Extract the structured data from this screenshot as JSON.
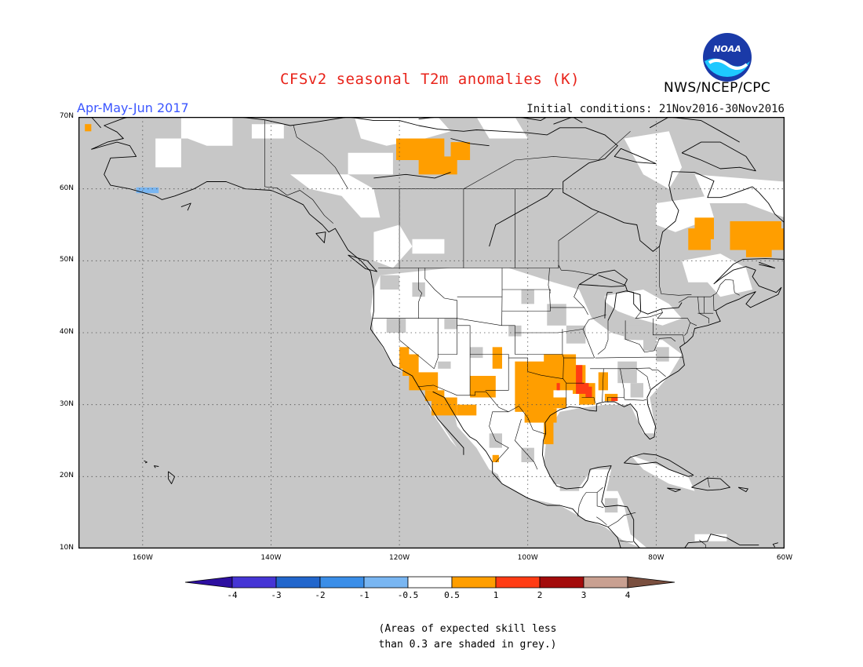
{
  "title": "CFSv2 seasonal T2m anomalies (K)",
  "period": "Apr-May-Jun 2017",
  "initial_conditions": "Initial conditions: 21Nov2016-30Nov2016",
  "agency": "NWS/NCEP/CPC",
  "logo_text": "NOAA",
  "note": [
    "(Areas of expected skill less",
    "than 0.3 are shaded in grey.)"
  ],
  "map": {
    "lon_range": [
      -170,
      -60
    ],
    "lat_range": [
      10,
      70
    ],
    "lat_labels": [
      "70N",
      "60N",
      "50N",
      "40N",
      "30N",
      "20N",
      "10N"
    ],
    "lon_labels": [
      "160W",
      "140W",
      "120W",
      "100W",
      "80W",
      "60W"
    ],
    "grid_lat": [
      20,
      30,
      40,
      50,
      60
    ],
    "grid_lon": [
      -160,
      -140,
      -120,
      -100,
      -80
    ],
    "grey_color": "#c7c7c7"
  },
  "colorbar": {
    "labels": [
      "-4",
      "-3",
      "-2",
      "-1",
      "-0.5",
      "0.5",
      "1",
      "2",
      "3",
      "4"
    ],
    "colors": [
      "#2d0fa0",
      "#4535d5",
      "#2166cc",
      "#3a8ee8",
      "#79b6f2",
      "#ffffff",
      "#ff9e00",
      "#ff3c14",
      "#a30b0b",
      "#c9a091",
      "#7a4f3f"
    ]
  },
  "anomaly_regions": [
    {
      "name": "western-alaska",
      "value": 0.7,
      "cells": [
        [
          -169,
          69,
          -168,
          68
        ]
      ]
    },
    {
      "name": "alaska-south",
      "value": -0.7,
      "cells": [
        [
          -161,
          60.2,
          -157.5,
          59.4
        ]
      ]
    },
    {
      "name": "northwest-territories",
      "value": 0.7,
      "cells": [
        [
          -120.5,
          67,
          -113,
          64
        ],
        [
          -117,
          64.5,
          -111,
          62
        ],
        [
          -112,
          66.5,
          -109,
          64
        ]
      ]
    },
    {
      "name": "quebec-labrador",
      "value": 0.7,
      "cells": [
        [
          -74,
          56,
          -71,
          53
        ],
        [
          -75,
          54.5,
          -71.5,
          51.5
        ],
        [
          -68.5,
          55.5,
          -60.5,
          51.5
        ],
        [
          -66,
          52.5,
          -62,
          50.5
        ],
        [
          -60.5,
          54.5,
          -60,
          51.5
        ]
      ]
    },
    {
      "name": "southwest-us",
      "value": 0.7,
      "cells": [
        [
          -120,
          38,
          -118.5,
          35
        ],
        [
          -119.5,
          37,
          -117,
          34
        ],
        [
          -118.5,
          34.5,
          -114,
          32
        ],
        [
          -116,
          32,
          -113,
          30.5
        ],
        [
          -115,
          31,
          -111,
          28.5
        ],
        [
          -111,
          30,
          -108,
          28.5
        ]
      ]
    },
    {
      "name": "central-us",
      "value": 0.7,
      "cells": [
        [
          -109,
          34,
          -105,
          31
        ],
        [
          -105.5,
          38,
          -104,
          35
        ],
        [
          -102,
          36,
          -96,
          29
        ],
        [
          -97.5,
          37,
          -92.5,
          32
        ],
        [
          -100.5,
          29.5,
          -95.5,
          27.5
        ],
        [
          -97.5,
          28,
          -96,
          24.5
        ],
        [
          -93,
          35.5,
          -91,
          31.5
        ],
        [
          -92,
          33,
          -89.5,
          30
        ],
        [
          -89,
          34.5,
          -87.5,
          32
        ],
        [
          -88,
          31.5,
          -86,
          30.5
        ],
        [
          -105.5,
          23,
          -104.5,
          22
        ],
        [
          -97,
          31,
          -94,
          29.5
        ]
      ]
    },
    {
      "name": "mississippi-valley",
      "value": 1.5,
      "cells": [
        [
          -92.5,
          35.5,
          -91.5,
          32.5
        ],
        [
          -92.5,
          33,
          -90.5,
          31.5
        ],
        [
          -91,
          32.5,
          -90,
          31
        ],
        [
          -87,
          31,
          -86,
          30.5
        ],
        [
          -95.5,
          33,
          -95,
          32
        ]
      ]
    }
  ]
}
